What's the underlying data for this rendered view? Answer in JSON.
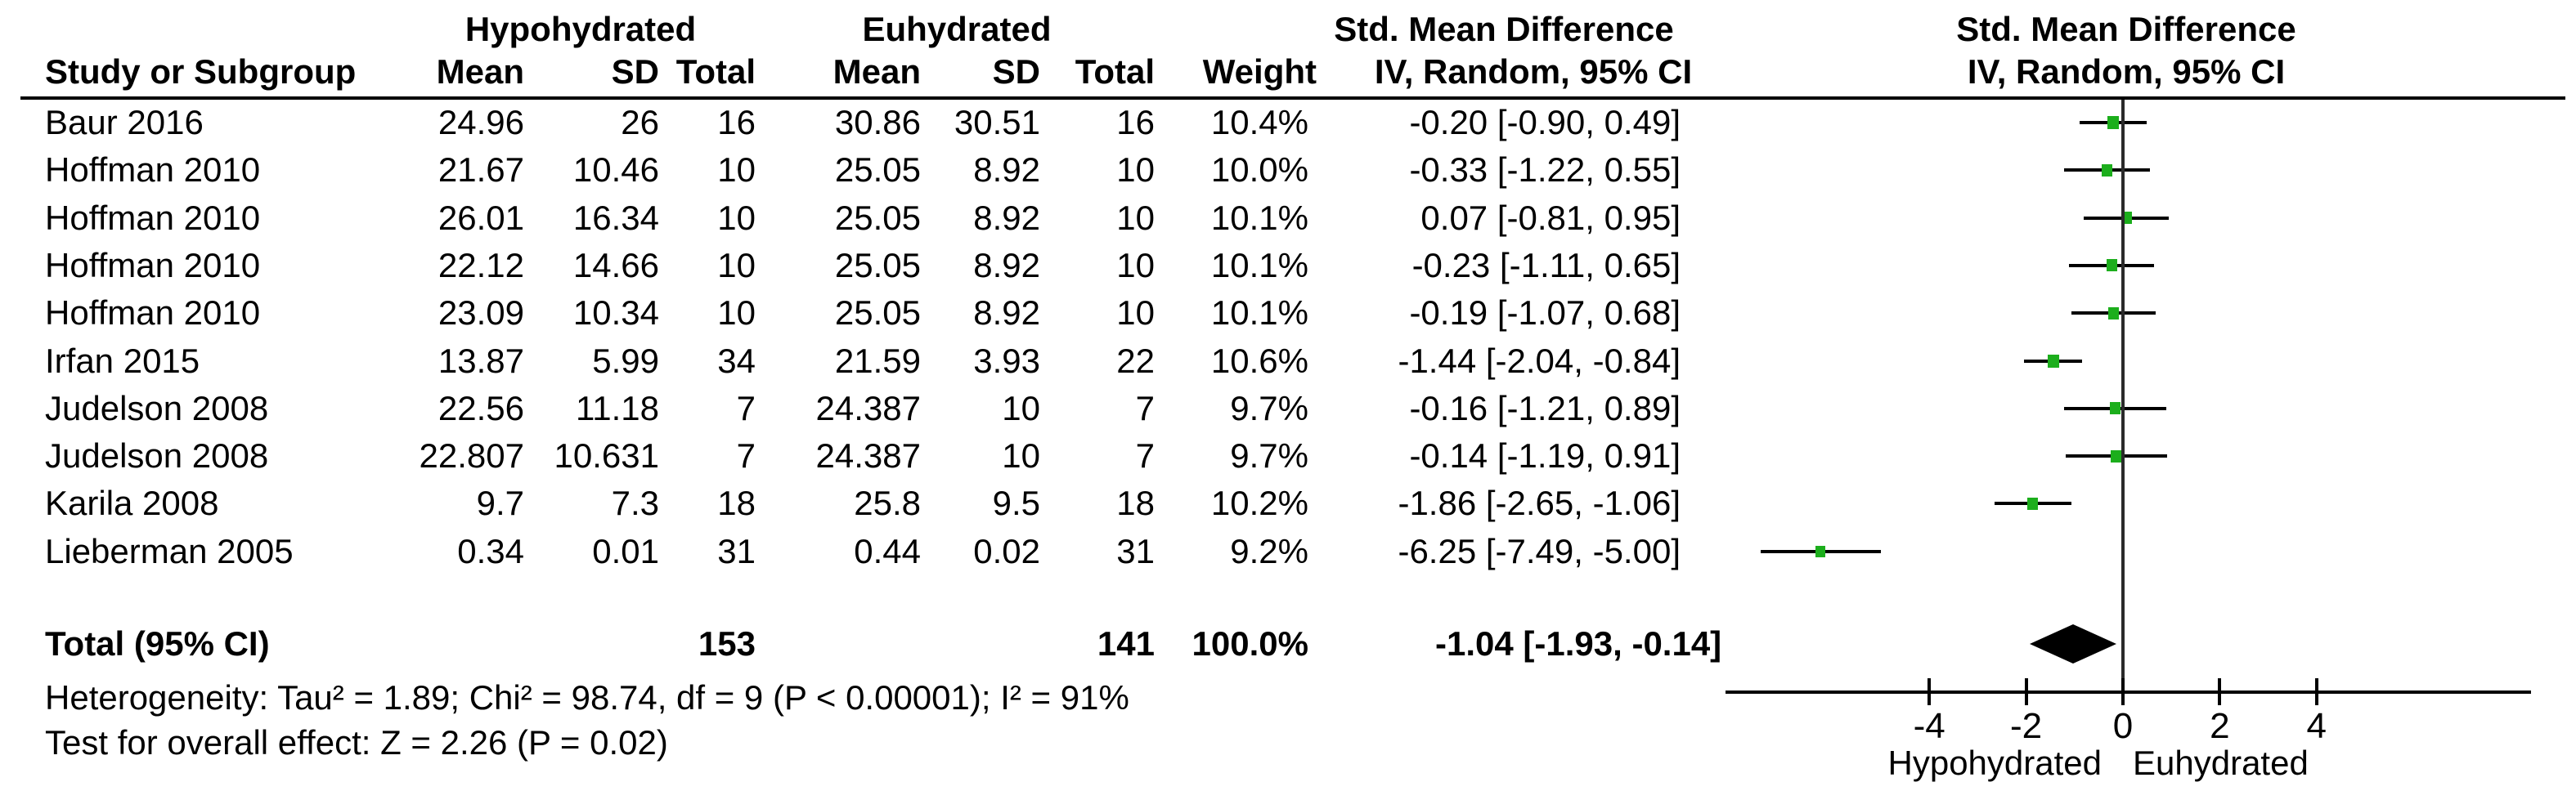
{
  "header": {
    "group1": "Hypohydrated",
    "group2": "Euhydrated",
    "effect": "Std. Mean Difference",
    "method": "IV, Random, 95% CI",
    "study_col": "Study or Subgroup",
    "mean_col": "Mean",
    "sd_col": "SD",
    "total_col": "Total",
    "weight_col": "Weight"
  },
  "footer": {
    "total_label": "Total (95% CI)",
    "total1": "153",
    "total2": "141",
    "total_weight": "100.0%",
    "total_ci": "-1.04 [-1.93, -0.14]",
    "heterogeneity": "Heterogeneity: Tau² = 1.89; Chi² = 98.74, df = 9 (P < 0.00001); I² = 91%",
    "overall_test": "Test for overall effect: Z = 2.26 (P = 0.02)"
  },
  "axis": {
    "left_label": "Hypohydrated",
    "right_label": "Euhydrated"
  },
  "colors": {
    "marker_green": "#1CAE1C",
    "diamond_black": "#000000",
    "zero_line": "#2a2a2a"
  },
  "chart_data": {
    "type": "forest",
    "title": "Std. Mean Difference, IV, Random, 95% CI",
    "x_ticks": [
      -4,
      -2,
      0,
      2,
      4
    ],
    "x_axis_range": [
      -8.2,
      8.4
    ],
    "group1": "Hypohydrated",
    "group2": "Euhydrated",
    "studies": [
      {
        "name": "Baur 2016",
        "mean1": "24.96",
        "sd1": "26",
        "total1": "16",
        "mean2": "30.86",
        "sd2": "30.51",
        "total2": "16",
        "weight": "10.4%",
        "ci_text": "-0.20 [-0.90, 0.49]",
        "est": -0.2,
        "lo": -0.9,
        "hi": 0.49,
        "weight_val": 10.4
      },
      {
        "name": "Hoffman 2010",
        "mean1": "21.67",
        "sd1": "10.46",
        "total1": "10",
        "mean2": "25.05",
        "sd2": "8.92",
        "total2": "10",
        "weight": "10.0%",
        "ci_text": "-0.33 [-1.22, 0.55]",
        "est": -0.33,
        "lo": -1.22,
        "hi": 0.55,
        "weight_val": 10.0
      },
      {
        "name": "Hoffman 2010",
        "mean1": "26.01",
        "sd1": "16.34",
        "total1": "10",
        "mean2": "25.05",
        "sd2": "8.92",
        "total2": "10",
        "weight": "10.1%",
        "ci_text": "0.07 [-0.81, 0.95]",
        "est": 0.07,
        "lo": -0.81,
        "hi": 0.95,
        "weight_val": 10.1
      },
      {
        "name": "Hoffman 2010",
        "mean1": "22.12",
        "sd1": "14.66",
        "total1": "10",
        "mean2": "25.05",
        "sd2": "8.92",
        "total2": "10",
        "weight": "10.1%",
        "ci_text": "-0.23 [-1.11, 0.65]",
        "est": -0.23,
        "lo": -1.11,
        "hi": 0.65,
        "weight_val": 10.1
      },
      {
        "name": "Hoffman 2010",
        "mean1": "23.09",
        "sd1": "10.34",
        "total1": "10",
        "mean2": "25.05",
        "sd2": "8.92",
        "total2": "10",
        "weight": "10.1%",
        "ci_text": "-0.19 [-1.07, 0.68]",
        "est": -0.19,
        "lo": -1.07,
        "hi": 0.68,
        "weight_val": 10.1
      },
      {
        "name": "Irfan 2015",
        "mean1": "13.87",
        "sd1": "5.99",
        "total1": "34",
        "mean2": "21.59",
        "sd2": "3.93",
        "total2": "22",
        "weight": "10.6%",
        "ci_text": "-1.44 [-2.04, -0.84]",
        "est": -1.44,
        "lo": -2.04,
        "hi": -0.84,
        "weight_val": 10.6
      },
      {
        "name": "Judelson 2008",
        "mean1": "22.56",
        "sd1": "11.18",
        "total1": "7",
        "mean2": "24.387",
        "sd2": "10",
        "total2": "7",
        "weight": "9.7%",
        "ci_text": "-0.16 [-1.21, 0.89]",
        "est": -0.16,
        "lo": -1.21,
        "hi": 0.89,
        "weight_val": 9.7
      },
      {
        "name": "Judelson 2008",
        "mean1": "22.807",
        "sd1": "10.631",
        "total1": "7",
        "mean2": "24.387",
        "sd2": "10",
        "total2": "7",
        "weight": "9.7%",
        "ci_text": "-0.14 [-1.19, 0.91]",
        "est": -0.14,
        "lo": -1.19,
        "hi": 0.91,
        "weight_val": 9.7
      },
      {
        "name": "Karila 2008",
        "mean1": "9.7",
        "sd1": "7.3",
        "total1": "18",
        "mean2": "25.8",
        "sd2": "9.5",
        "total2": "18",
        "weight": "10.2%",
        "ci_text": "-1.86 [-2.65, -1.06]",
        "est": -1.86,
        "lo": -2.65,
        "hi": -1.06,
        "weight_val": 10.2
      },
      {
        "name": "Lieberman 2005",
        "mean1": "0.34",
        "sd1": "0.01",
        "total1": "31",
        "mean2": "0.44",
        "sd2": "0.02",
        "total2": "31",
        "weight": "9.2%",
        "ci_text": "-6.25 [-7.49, -5.00]",
        "est": -6.25,
        "lo": -7.49,
        "hi": -5.0,
        "weight_val": 9.2
      }
    ],
    "total": {
      "est": -1.04,
      "lo": -1.93,
      "hi": -0.14
    }
  }
}
